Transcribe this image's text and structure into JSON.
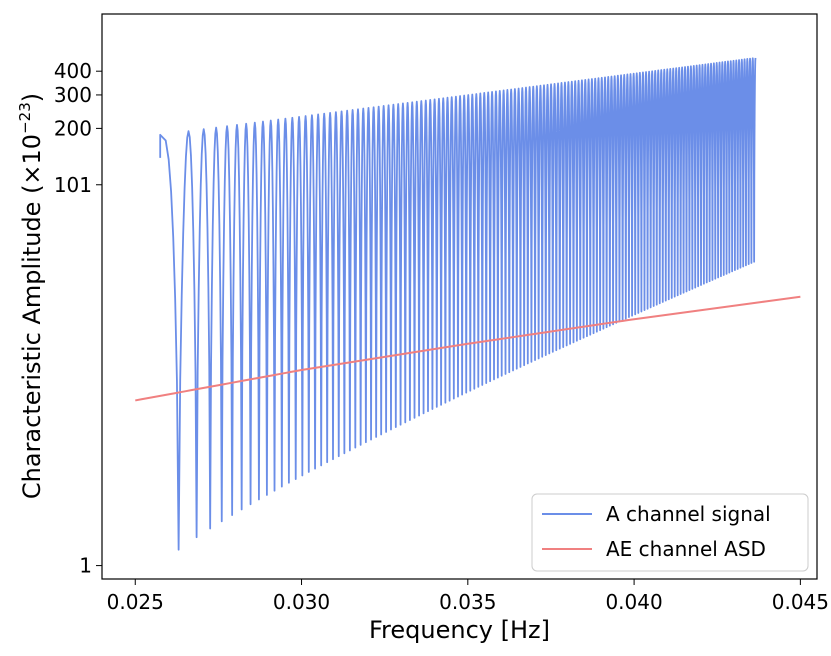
{
  "chart_data": {
    "type": "line",
    "title": "",
    "xlabel": "Frequency [Hz]",
    "ylabel_text": "Characteristic Amplitude (×10",
    "ylabel_exponent": "−23",
    "ylabel_close": ")",
    "xlim": [
      0.024,
      0.0455
    ],
    "ylim": [
      0.85,
      800
    ],
    "yscale": "log",
    "x_ticks": [
      {
        "value": 0.025,
        "label": "0.025"
      },
      {
        "value": 0.03,
        "label": "0.030"
      },
      {
        "value": 0.035,
        "label": "0.035"
      },
      {
        "value": 0.04,
        "label": "0.040"
      },
      {
        "value": 0.045,
        "label": "0.045"
      }
    ],
    "y_ticks": [
      {
        "value": 1,
        "label": "1"
      },
      {
        "value": 101,
        "label": "101"
      },
      {
        "value": 200,
        "label": "200"
      },
      {
        "value": 300,
        "label": "300"
      },
      {
        "value": 400,
        "label": "400"
      }
    ],
    "series": [
      {
        "name": "A channel signal",
        "color": "#6b8ee8",
        "x_start": 0.02575,
        "x_end": 0.04365,
        "envelope_start": 185,
        "envelope_end": 470,
        "dip_start": 1.0,
        "dip_end": 40,
        "oscillations": 136
      },
      {
        "name": "AE channel ASD",
        "color": "#f08080",
        "x": [
          0.025,
          0.03,
          0.035,
          0.04,
          0.045
        ],
        "values": [
          7.4,
          10.7,
          14.7,
          19.8,
          26.0
        ]
      }
    ],
    "legend": {
      "position": "lower-right",
      "entries": [
        "A channel signal",
        "AE channel ASD"
      ]
    }
  }
}
